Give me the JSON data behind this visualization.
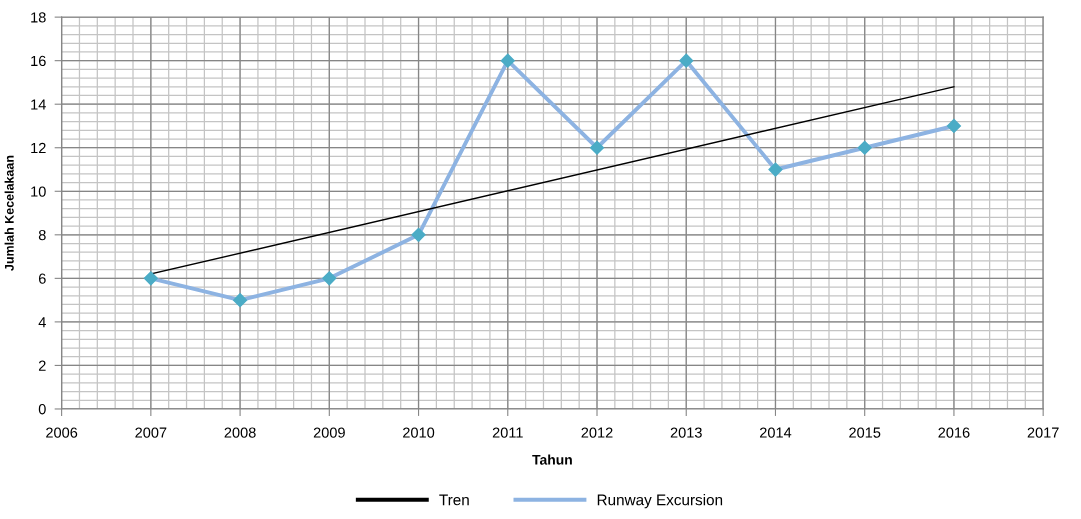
{
  "chart_data": {
    "type": "line",
    "xlabel": "Tahun",
    "ylabel": "Jumlah Kecelakaan",
    "x": [
      2007,
      2008,
      2009,
      2010,
      2011,
      2012,
      2013,
      2014,
      2015,
      2016
    ],
    "series": [
      {
        "name": "Tren",
        "color": "#000000",
        "x": [
          2007,
          2016
        ],
        "values": [
          6.2,
          14.8
        ],
        "marker": "none"
      },
      {
        "name": "Runway Excursion",
        "color": "#8db3e2",
        "colors": [
          "#4bacc6",
          "#4bacc6",
          "#4bacc6",
          "#4bacc6",
          "#4bacc6",
          "#4bacc6",
          "#4bacc6",
          "#4bacc6",
          "#4bacc6",
          "#4bacc6"
        ],
        "values": [
          6,
          5,
          6,
          8,
          16,
          12,
          16,
          11,
          12,
          13
        ],
        "marker": "diamond"
      }
    ],
    "xlim": [
      2006,
      2017
    ],
    "xticks": [
      2006,
      2007,
      2008,
      2009,
      2010,
      2011,
      2012,
      2013,
      2014,
      2015,
      2016,
      2017
    ],
    "ylim": [
      0,
      18
    ],
    "yticks": [
      0,
      2,
      4,
      6,
      8,
      10,
      12,
      14,
      16,
      18
    ],
    "grid": true,
    "legend": "bottom"
  }
}
